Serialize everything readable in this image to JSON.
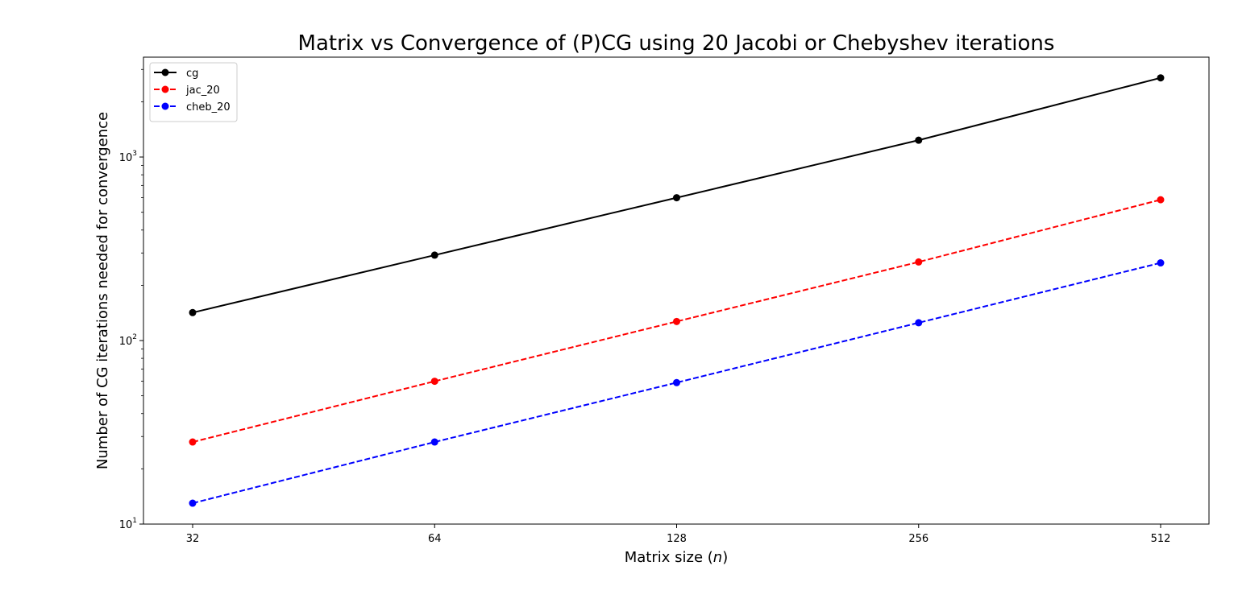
{
  "chart_data": {
    "type": "line",
    "title": "Matrix vs Convergence of (P)CG using 20 Jacobi or Chebyshev iterations",
    "xlabel": "Matrix size (n)",
    "xlabel_prefix": "Matrix size (",
    "xlabel_var": "n",
    "xlabel_suffix": ")",
    "ylabel": "Number of CG iterations needed for convergence",
    "x_scale": "log2",
    "y_scale": "log10",
    "x": [
      32,
      64,
      128,
      256,
      512
    ],
    "x_tick_labels": [
      "32",
      "64",
      "128",
      "256",
      "512"
    ],
    "y_ticks": [
      {
        "value": 10,
        "base": "10",
        "exp": "1"
      },
      {
        "value": 100,
        "base": "10",
        "exp": "2"
      },
      {
        "value": 1000,
        "base": "10",
        "exp": "3"
      }
    ],
    "ylim": [
      10,
      3500
    ],
    "grid": false,
    "legend_position": "top-left",
    "series": [
      {
        "name": "cg",
        "values": [
          142,
          292,
          600,
          1235,
          2700
        ],
        "color": "#000000",
        "dash": "solid",
        "marker": "circle"
      },
      {
        "name": "jac_20",
        "values": [
          28,
          60,
          127,
          268,
          585
        ],
        "color": "#ff0000",
        "dash": "dashed",
        "marker": "circle"
      },
      {
        "name": "cheb_20",
        "values": [
          13,
          28,
          59,
          125,
          265
        ],
        "color": "#0000ff",
        "dash": "dashed",
        "marker": "circle"
      }
    ]
  }
}
